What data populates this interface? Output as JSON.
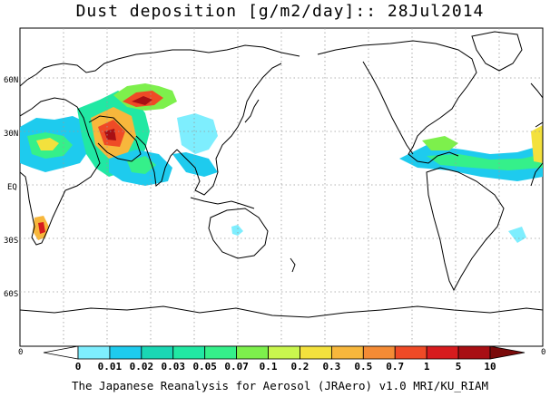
{
  "title": "Dust deposition [g/m2/day]:: 28Jul2014",
  "footer": "The Japanese Reanalysis for Aerosol (JRAero) v1.0 MRI/KU_RIAM",
  "lat_labels": [
    "60N",
    "30N",
    "EQ",
    "30S",
    "60S"
  ],
  "lon_edge_labels": [
    "0",
    "0"
  ],
  "colorbar": {
    "labels": [
      "0",
      "0.01",
      "0.02",
      "0.03",
      "0.05",
      "0.07",
      "0.1",
      "0.2",
      "0.3",
      "0.5",
      "0.7",
      "1",
      "5",
      "10"
    ],
    "colors": [
      "#ffffff",
      "#7eeefe",
      "#1ecbee",
      "#1ad7b4",
      "#21e8a3",
      "#35f08a",
      "#7df04c",
      "#c9f64e",
      "#f3e13d",
      "#f7b73c",
      "#f48b35",
      "#ef4a26",
      "#d71b1e",
      "#a80f14",
      "#7a0a0a"
    ]
  },
  "colors": {
    "coast": "#000000",
    "grid": "#9a9a9a"
  }
}
